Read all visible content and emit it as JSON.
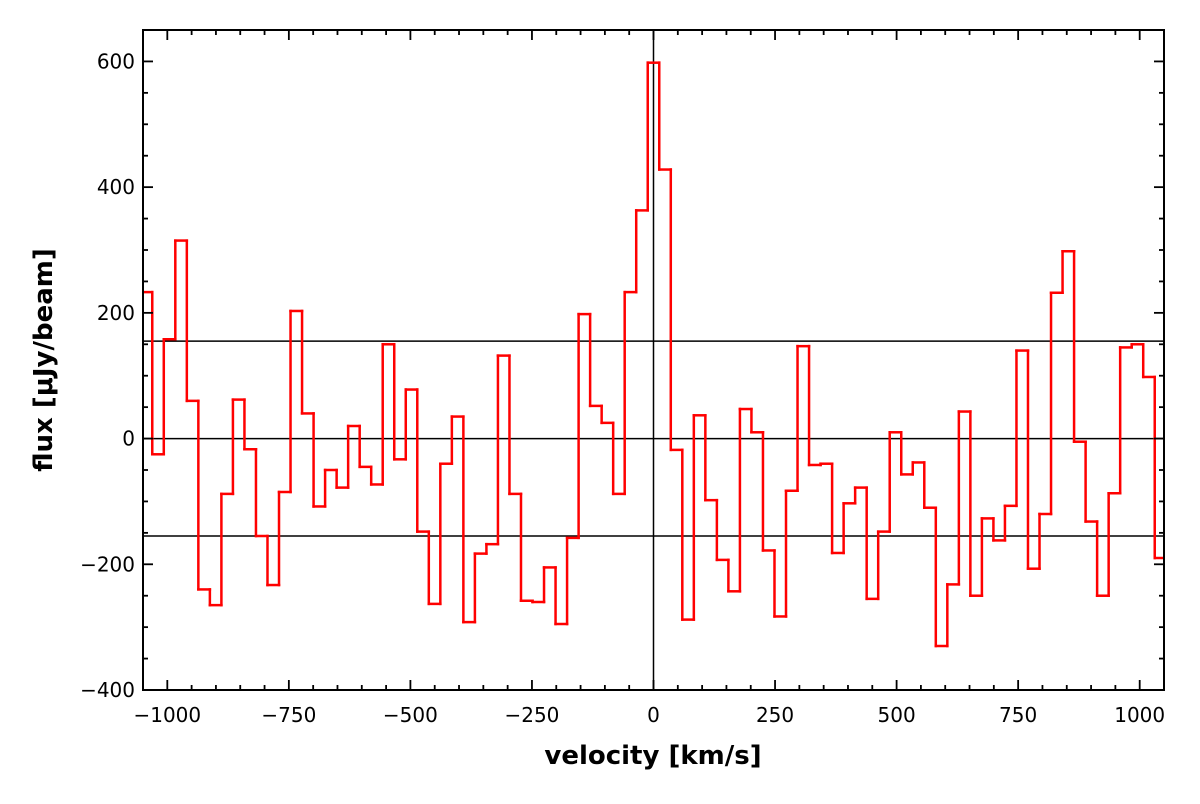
{
  "chart_data": {
    "type": "step",
    "xlabel": "velocity [km/s]",
    "ylabel": "flux [μJy/beam]",
    "x": [
      -1042.8,
      -1019.1,
      -995.4,
      -971.7,
      -948,
      -924.3,
      -900.6,
      -876.9,
      -853.2,
      -829.5,
      -805.8,
      -782.1,
      -758.4,
      -734.7,
      -711,
      -687.3,
      -663.6,
      -639.9,
      -616.2,
      -592.5,
      -568.8,
      -545.1,
      -521.4,
      -497.7,
      -474,
      -450.3,
      -426.6,
      -402.9,
      -379.2,
      -355.5,
      -331.8,
      -308.1,
      -284.4,
      -260.7,
      -237,
      -213.3,
      -189.6,
      -165.9,
      -142.2,
      -118.5,
      -94.8,
      -71.1,
      -47.4,
      -23.7,
      0,
      23.7,
      47.4,
      71.1,
      94.8,
      118.5,
      142.2,
      165.9,
      189.6,
      213.3,
      237,
      260.7,
      284.4,
      308.1,
      331.8,
      355.5,
      379.2,
      402.9,
      426.6,
      450.3,
      474,
      497.7,
      521.4,
      545.1,
      568.8,
      592.5,
      616.2,
      639.9,
      663.6,
      687.3,
      711,
      734.7,
      758.4,
      782.1,
      805.8,
      829.5,
      853.2,
      876.9,
      900.6,
      924.3,
      948,
      971.7,
      995.4,
      1019.1,
      1042.8
    ],
    "values": [
      233,
      -25,
      158,
      315,
      60,
      -240,
      -265,
      -88,
      62,
      -17,
      -155,
      -233,
      -85,
      203,
      40,
      -108,
      -50,
      -78,
      20,
      -45,
      -73,
      150,
      -33,
      78,
      -148,
      -263,
      -40,
      35,
      -292,
      -183,
      -168,
      132,
      -88,
      -258,
      -260,
      -205,
      -295,
      -158,
      198,
      52,
      25,
      -88,
      233,
      363,
      598,
      428,
      -18,
      -288,
      37,
      -98,
      -193,
      -243,
      47,
      10,
      -178,
      -283,
      -83,
      147,
      -42,
      -40,
      -182,
      -103,
      -78,
      -255,
      -148,
      10,
      -57,
      -38,
      -110,
      -330,
      -232,
      43,
      -250,
      -127,
      -162,
      -107,
      140,
      -207,
      -120,
      232,
      298,
      -5,
      -132,
      -250,
      -87,
      145,
      150,
      98,
      -190
    ],
    "color": "#ff0000",
    "xlim": [
      -1050,
      1050
    ],
    "ylim": [
      -400,
      650
    ],
    "xticks": [
      {
        "value": -1000,
        "label": "−1000"
      },
      {
        "value": -750,
        "label": "−750"
      },
      {
        "value": -500,
        "label": "−500"
      },
      {
        "value": -250,
        "label": "−250"
      },
      0,
      250,
      500,
      750,
      1000
    ],
    "yticks": [
      {
        "value": -400,
        "label": "−400"
      },
      {
        "value": -200,
        "label": "−200"
      },
      0,
      200,
      400,
      600
    ],
    "xminorticks": [
      -1050,
      -950,
      -900,
      -850,
      -800,
      -700,
      -650,
      -600,
      -550,
      -450,
      -400,
      -350,
      -300,
      -200,
      -150,
      -100,
      -50,
      50,
      100,
      150,
      200,
      300,
      350,
      400,
      450,
      550,
      600,
      650,
      700,
      800,
      850,
      900,
      950,
      1050
    ],
    "yminorticks": [
      -350,
      -300,
      -250,
      -150,
      -100,
      -50,
      50,
      100,
      150,
      250,
      300,
      350,
      450,
      500,
      550,
      650
    ],
    "hlines": [
      -155,
      0,
      155
    ],
    "vlines": [
      0
    ]
  }
}
